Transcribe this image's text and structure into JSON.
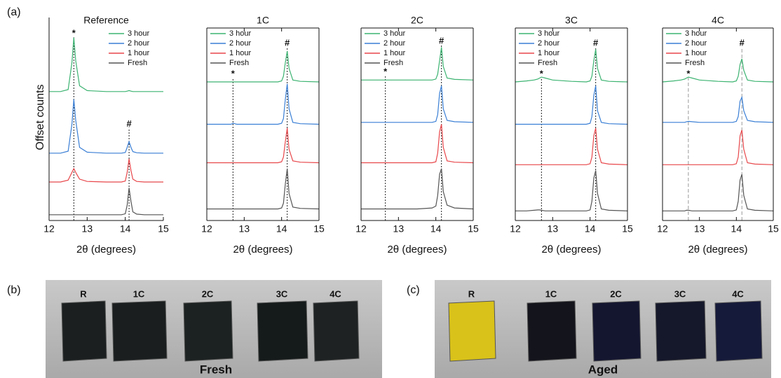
{
  "chart_data": [
    {
      "type": "line",
      "title": "Reference",
      "ylabel": "Offset counts",
      "xlabel": "2θ (degrees)",
      "xlim": [
        12,
        15
      ],
      "xticks": [
        12,
        13,
        14,
        15
      ],
      "ylim": [
        0,
        100
      ],
      "box": false,
      "legend": "upper right",
      "x": [
        12,
        12.3,
        12.5,
        12.6,
        12.65,
        12.7,
        12.8,
        13,
        13.5,
        13.9,
        14,
        14.05,
        14.1,
        14.15,
        14.2,
        14.3,
        14.5,
        15
      ],
      "series": [
        {
          "name": "3 hour",
          "color": "#3cb371",
          "values": [
            67,
            67,
            68,
            82,
            95,
            83,
            70,
            67.5,
            67,
            67,
            67,
            67.2,
            67.5,
            67.2,
            67,
            67,
            67,
            67
          ]
        },
        {
          "name": "2 hour",
          "color": "#3a7fd5",
          "values": [
            35,
            35,
            36,
            50,
            63,
            52,
            38,
            35.5,
            35,
            35,
            35.3,
            38,
            41,
            38,
            35.8,
            35.2,
            35,
            35
          ]
        },
        {
          "name": "1 hour",
          "color": "#e8474b",
          "values": [
            20,
            20,
            21,
            25,
            27,
            25,
            21.5,
            20.3,
            20,
            20,
            20.5,
            25,
            32,
            26,
            21.5,
            20.3,
            20,
            20
          ]
        },
        {
          "name": "Fresh",
          "color": "#555555",
          "values": [
            3,
            3,
            3,
            3,
            3,
            3,
            3,
            3,
            3,
            3,
            3.5,
            8,
            17,
            10,
            4.5,
            3.3,
            3,
            3
          ]
        }
      ],
      "annotations": [
        {
          "text": "*",
          "x": 12.65,
          "y": 97
        },
        {
          "text": "#",
          "x": 14.1,
          "y": 50
        }
      ]
    },
    {
      "type": "line",
      "title": "1C",
      "xlabel": "2θ (degrees)",
      "xlim": [
        12,
        15
      ],
      "xticks": [
        12,
        13,
        14,
        15
      ],
      "ylim": [
        0,
        100
      ],
      "box": true,
      "legend": "upper left",
      "x": [
        12,
        12.3,
        12.5,
        12.6,
        12.65,
        12.7,
        12.8,
        13,
        13.5,
        13.9,
        14,
        14.05,
        14.1,
        14.15,
        14.2,
        14.3,
        14.5,
        15
      ],
      "series": [
        {
          "name": "3 hour",
          "color": "#3cb371",
          "values": [
            72,
            72,
            72,
            72,
            72,
            72,
            72,
            72,
            72,
            72,
            72.5,
            75,
            82,
            88,
            79,
            73,
            72.3,
            72
          ]
        },
        {
          "name": "2 hour",
          "color": "#3a7fd5",
          "values": [
            50,
            50,
            50,
            50,
            50,
            50.5,
            50,
            50,
            50,
            50,
            50.5,
            53,
            63,
            71,
            58,
            51,
            50.3,
            50
          ]
        },
        {
          "name": "1 hour",
          "color": "#e8474b",
          "values": [
            30,
            30,
            30,
            30,
            30,
            30,
            30,
            30,
            30,
            30,
            30.5,
            33,
            41,
            48,
            37,
            31,
            30.3,
            30
          ]
        },
        {
          "name": "Fresh",
          "color": "#555555",
          "values": [
            6,
            6,
            6,
            6,
            6,
            6,
            6,
            6,
            6,
            6,
            6.5,
            9,
            19,
            27,
            14,
            7,
            6.3,
            6
          ]
        }
      ],
      "annotations": [
        {
          "text": "*",
          "x": 12.7,
          "y": 76
        },
        {
          "text": "#",
          "x": 14.15,
          "y": 92
        }
      ]
    },
    {
      "type": "line",
      "title": "2C",
      "xlabel": "2θ (degrees)",
      "xlim": [
        12,
        15
      ],
      "xticks": [
        12,
        13,
        14,
        15
      ],
      "ylim": [
        0,
        100
      ],
      "box": true,
      "legend": "upper left",
      "x": [
        12,
        12.3,
        12.5,
        12.6,
        12.65,
        12.7,
        12.8,
        13,
        13.5,
        13.9,
        14,
        14.05,
        14.1,
        14.15,
        14.2,
        14.3,
        14.5,
        15
      ],
      "series": [
        {
          "name": "3 hour",
          "color": "#3cb371",
          "values": [
            73,
            73,
            73,
            73,
            73,
            73,
            73,
            73,
            73,
            73,
            73.5,
            76,
            83,
            90,
            80,
            74,
            73.3,
            73
          ]
        },
        {
          "name": "2 hour",
          "color": "#3a7fd5",
          "values": [
            51,
            51,
            51,
            51,
            51,
            51,
            51,
            51,
            51,
            51,
            51.5,
            55,
            66,
            70,
            58,
            52,
            51.3,
            51
          ]
        },
        {
          "name": "1 hour",
          "color": "#e8474b",
          "values": [
            30,
            30,
            30,
            30,
            30,
            30,
            30,
            30,
            30,
            30,
            30.5,
            35,
            46,
            50,
            38,
            31,
            30.3,
            30
          ]
        },
        {
          "name": "Fresh",
          "color": "#555555",
          "values": [
            6,
            6,
            6,
            6,
            6,
            6,
            6,
            6,
            6,
            6.5,
            7.5,
            13,
            24,
            27,
            15,
            8,
            6.5,
            6
          ]
        }
      ],
      "annotations": [
        {
          "text": "*",
          "x": 12.65,
          "y": 77
        },
        {
          "text": "#",
          "x": 14.15,
          "y": 93
        }
      ]
    },
    {
      "type": "line",
      "title": "3C",
      "xlabel": "2θ (degrees)",
      "xlim": [
        12,
        15
      ],
      "xticks": [
        12,
        13,
        14,
        15
      ],
      "ylim": [
        0,
        100
      ],
      "box": true,
      "legend": "upper left",
      "x": [
        12,
        12.3,
        12.5,
        12.6,
        12.65,
        12.7,
        12.8,
        13,
        13.5,
        13.9,
        14,
        14.05,
        14.1,
        14.15,
        14.2,
        14.3,
        14.5,
        15
      ],
      "series": [
        {
          "name": "3 hour",
          "color": "#3cb371",
          "values": [
            72,
            72.5,
            73,
            73.5,
            74,
            74.5,
            74,
            73,
            72.3,
            72,
            72.5,
            75,
            83,
            89,
            79,
            73,
            72.3,
            72
          ]
        },
        {
          "name": "2 hour",
          "color": "#3a7fd5",
          "values": [
            50,
            50,
            50,
            50,
            50,
            50,
            50,
            50,
            50,
            50,
            50.5,
            54,
            65,
            70,
            57,
            51,
            50.3,
            50
          ]
        },
        {
          "name": "1 hour",
          "color": "#e8474b",
          "values": [
            29,
            29,
            29,
            29,
            29,
            29,
            29,
            29,
            29,
            29,
            29.5,
            33,
            44,
            48,
            37,
            30,
            29.3,
            29
          ]
        },
        {
          "name": "Fresh",
          "color": "#555555",
          "values": [
            5,
            5,
            5.3,
            5.5,
            5.5,
            5.3,
            5,
            5,
            5,
            5,
            5.5,
            10,
            22,
            26,
            14,
            6,
            5.3,
            5
          ]
        }
      ],
      "annotations": [
        {
          "text": "*",
          "x": 12.7,
          "y": 76
        },
        {
          "text": "#",
          "x": 14.15,
          "y": 92
        }
      ]
    },
    {
      "type": "line",
      "title": "4C",
      "xlabel": "2θ (degrees)",
      "xlim": [
        12,
        15
      ],
      "xticks": [
        12,
        13,
        14,
        15
      ],
      "ylim": [
        0,
        100
      ],
      "box": true,
      "legend": "upper left",
      "x": [
        12,
        12.3,
        12.5,
        12.6,
        12.65,
        12.7,
        12.8,
        13,
        13.5,
        13.9,
        14,
        14.05,
        14.1,
        14.15,
        14.2,
        14.3,
        14.5,
        15
      ],
      "series": [
        {
          "name": "3 hour",
          "color": "#3cb371",
          "values": [
            72,
            72.5,
            73,
            73.5,
            74,
            74.5,
            74,
            73,
            72.3,
            72,
            72.5,
            75,
            81,
            84,
            78,
            73,
            72.3,
            72
          ]
        },
        {
          "name": "2 hour",
          "color": "#3a7fd5",
          "values": [
            51,
            51,
            51,
            51,
            51.3,
            51.5,
            51.3,
            51,
            51,
            51,
            51.5,
            54,
            62,
            64,
            57,
            52,
            51.3,
            51
          ]
        },
        {
          "name": "1 hour",
          "color": "#e8474b",
          "values": [
            29,
            29,
            29,
            29,
            29,
            29,
            29,
            29,
            29,
            29,
            29.5,
            33,
            44,
            47,
            37,
            30,
            29.3,
            29
          ]
        },
        {
          "name": "Fresh",
          "color": "#555555",
          "values": [
            5,
            5,
            5,
            5,
            5.3,
            5.3,
            5,
            5,
            5,
            5,
            5.5,
            10,
            21,
            24,
            13,
            6,
            5.3,
            5
          ]
        }
      ],
      "annotations": [
        {
          "text": "*",
          "x": 12.7,
          "y": 76
        },
        {
          "text": "#",
          "x": 14.15,
          "y": 92
        }
      ]
    }
  ],
  "figure": {
    "labels": [
      "(a)",
      "(b)",
      "(c)"
    ],
    "photos": [
      {
        "caption": "Fresh",
        "samples": [
          "R",
          "1C",
          "2C",
          "3C",
          "4C"
        ]
      },
      {
        "caption": "Aged",
        "samples": [
          "R",
          "1C",
          "2C",
          "3C",
          "4C"
        ]
      }
    ]
  }
}
